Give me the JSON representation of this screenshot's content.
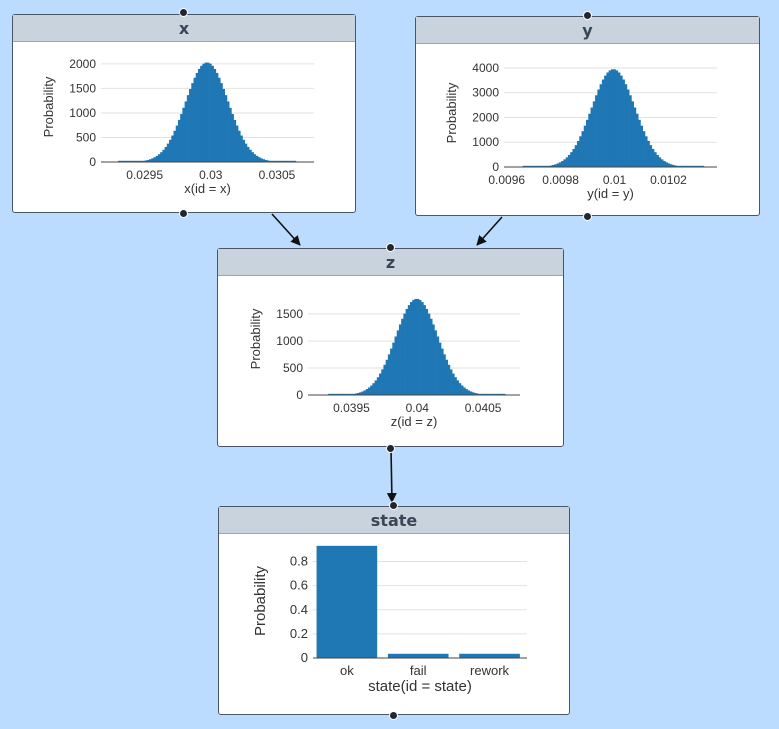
{
  "nodes": {
    "x": {
      "title": "x"
    },
    "y": {
      "title": "y"
    },
    "z": {
      "title": "z"
    },
    "state": {
      "title": "state"
    }
  },
  "chart_data": [
    {
      "id": "x",
      "type": "bar",
      "xlabel": "x(id = x)",
      "ylabel": "Probability",
      "xlim": [
        0.02917,
        0.03078
      ],
      "ylim": [
        0,
        2100
      ],
      "yticks": [
        0,
        500,
        1000,
        1500,
        2000
      ],
      "xticks": [
        0.0295,
        0.03,
        0.0305
      ],
      "xtick_labels": [
        "0.0295",
        "0.03",
        "0.0305"
      ],
      "dist": {
        "mean": 0.02997,
        "sd": 0.00016,
        "peak": 2030,
        "bins": 80
      },
      "color": "#1f77b4"
    },
    {
      "id": "y",
      "type": "bar",
      "xlabel": "y(id = y)",
      "ylabel": "Probability",
      "xlim": [
        0.00959,
        0.01038
      ],
      "ylim": [
        0,
        4200
      ],
      "yticks": [
        0,
        1000,
        2000,
        3000,
        4000
      ],
      "xticks": [
        0.0096,
        0.0098,
        0.01,
        0.0102
      ],
      "xtick_labels": [
        "0.0096",
        "0.0098",
        "0.01",
        "0.0102"
      ],
      "dist": {
        "mean": 0.009995,
        "sd": 8e-05,
        "peak": 3950,
        "bins": 80
      },
      "color": "#1f77b4"
    },
    {
      "id": "z",
      "type": "bar",
      "xlabel": "z(id = z)",
      "ylabel": "Probability",
      "xlim": [
        0.03917,
        0.04078
      ],
      "ylim": [
        0,
        1850
      ],
      "yticks": [
        0,
        500,
        1000,
        1500
      ],
      "xticks": [
        0.0395,
        0.04,
        0.0405
      ],
      "xtick_labels": [
        "0.0395",
        "0.04",
        "0.0405"
      ],
      "dist": {
        "mean": 0.039995,
        "sd": 0.00016,
        "peak": 1780,
        "bins": 80
      },
      "color": "#1f77b4"
    },
    {
      "id": "state",
      "type": "bar",
      "xlabel": "state(id = state)",
      "ylabel": "Probability",
      "categories": [
        "ok",
        "fail",
        "rework"
      ],
      "values": [
        0.93,
        0.035,
        0.035
      ],
      "ylim": [
        0,
        0.97
      ],
      "yticks": [
        0,
        0.2,
        0.4,
        0.6,
        0.8
      ],
      "ytick_labels": [
        "0",
        "0.2",
        "0.4",
        "0.6",
        "0.8"
      ],
      "color": "#1f77b4"
    }
  ]
}
